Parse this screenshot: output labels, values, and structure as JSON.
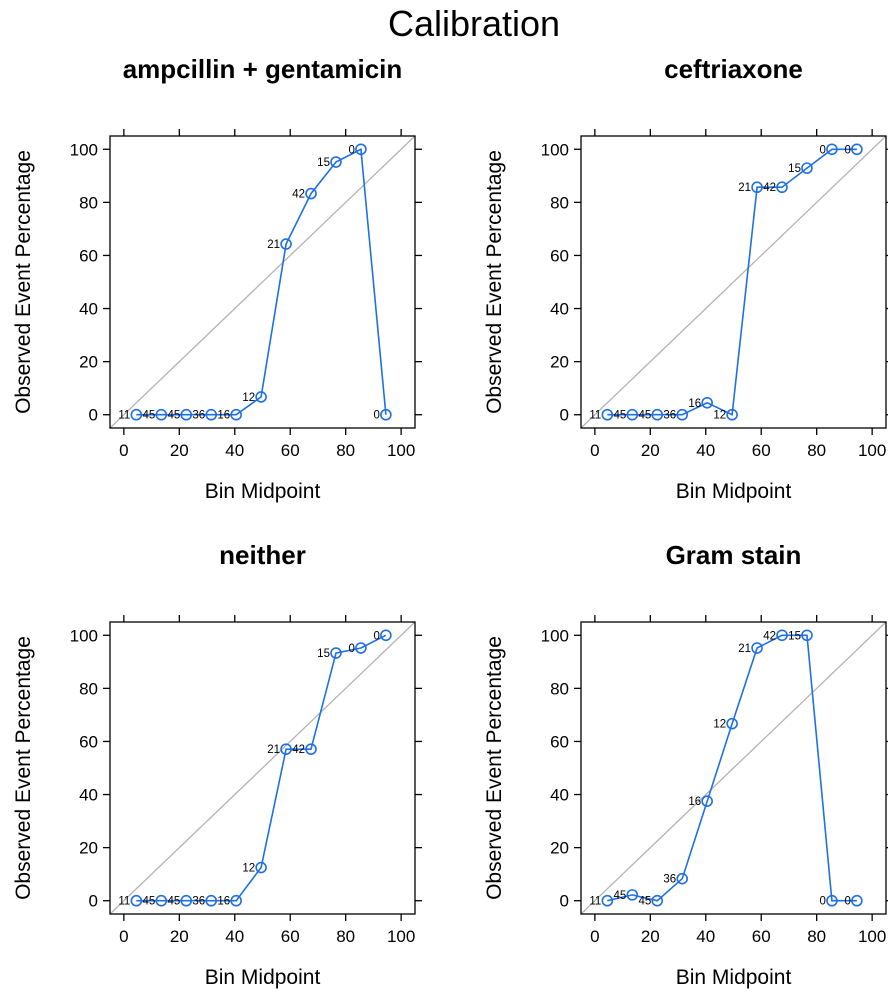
{
  "figure": {
    "title": "Calibration",
    "series_color": "#1f6fe8",
    "reference_color": "#b3b3b3"
  },
  "chart_data": [
    {
      "type": "line",
      "title": "ampcillin + gentamicin",
      "xlabel": "Bin Midpoint",
      "ylabel": "Observed Event Percentage",
      "xlim": [
        -5,
        105
      ],
      "ylim": [
        -5,
        105
      ],
      "xticks": [
        0,
        20,
        40,
        60,
        80,
        100
      ],
      "yticks": [
        0,
        20,
        40,
        60,
        80,
        100
      ],
      "reference_line": "y = x",
      "x": [
        4.5,
        13.5,
        22.5,
        31.5,
        40.5,
        49.5,
        58.5,
        67.5,
        76.5,
        85.5,
        94.5
      ],
      "y": [
        0,
        0,
        0,
        0,
        0,
        6.7,
        64.3,
        83.3,
        95.2,
        100,
        0
      ],
      "point_labels": [
        "11",
        "45",
        "45",
        "36",
        "16",
        "12",
        "21",
        "42",
        "15",
        "0",
        "0"
      ]
    },
    {
      "type": "line",
      "title": "ceftriaxone",
      "xlabel": "Bin Midpoint",
      "ylabel": "Observed Event Percentage",
      "xlim": [
        -5,
        105
      ],
      "ylim": [
        -5,
        105
      ],
      "xticks": [
        0,
        20,
        40,
        60,
        80,
        100
      ],
      "yticks": [
        0,
        20,
        40,
        60,
        80,
        100
      ],
      "reference_line": "y = x",
      "x": [
        4.5,
        13.5,
        22.5,
        31.5,
        40.5,
        49.5,
        58.5,
        67.5,
        76.5,
        85.5,
        94.5
      ],
      "y": [
        0,
        0,
        0,
        0,
        4.5,
        0,
        85.7,
        85.7,
        92.9,
        100,
        100
      ],
      "point_labels": [
        "11",
        "45",
        "45",
        "36",
        "16",
        "12",
        "21",
        "42",
        "15",
        "0",
        "0"
      ]
    },
    {
      "type": "line",
      "title": "neither",
      "xlabel": "Bin Midpoint",
      "ylabel": "Observed Event Percentage",
      "xlim": [
        -5,
        105
      ],
      "ylim": [
        -5,
        105
      ],
      "xticks": [
        0,
        20,
        40,
        60,
        80,
        100
      ],
      "yticks": [
        0,
        20,
        40,
        60,
        80,
        100
      ],
      "reference_line": "y = x",
      "x": [
        4.5,
        13.5,
        22.5,
        31.5,
        40.5,
        49.5,
        58.5,
        67.5,
        76.5,
        85.5,
        94.5
      ],
      "y": [
        0,
        0,
        0,
        0,
        0,
        12.5,
        57.1,
        57.1,
        93.3,
        95.2,
        100
      ],
      "point_labels": [
        "11",
        "45",
        "45",
        "36",
        "16",
        "12",
        "21",
        "42",
        "15",
        "0",
        "0"
      ]
    },
    {
      "type": "line",
      "title": "Gram stain",
      "xlabel": "Bin Midpoint",
      "ylabel": "Observed Event Percentage",
      "xlim": [
        -5,
        105
      ],
      "ylim": [
        -5,
        105
      ],
      "xticks": [
        0,
        20,
        40,
        60,
        80,
        100
      ],
      "yticks": [
        0,
        20,
        40,
        60,
        80,
        100
      ],
      "reference_line": "y = x",
      "x": [
        4.5,
        13.5,
        22.5,
        31.5,
        40.5,
        49.5,
        58.5,
        67.5,
        76.5,
        85.5,
        94.5
      ],
      "y": [
        0,
        2.2,
        0,
        8.3,
        37.5,
        66.7,
        95.2,
        100,
        100,
        0,
        0
      ],
      "point_labels": [
        "11",
        "45",
        "45",
        "36",
        "16",
        "12",
        "21",
        "42",
        "15",
        "0",
        "0"
      ]
    }
  ]
}
